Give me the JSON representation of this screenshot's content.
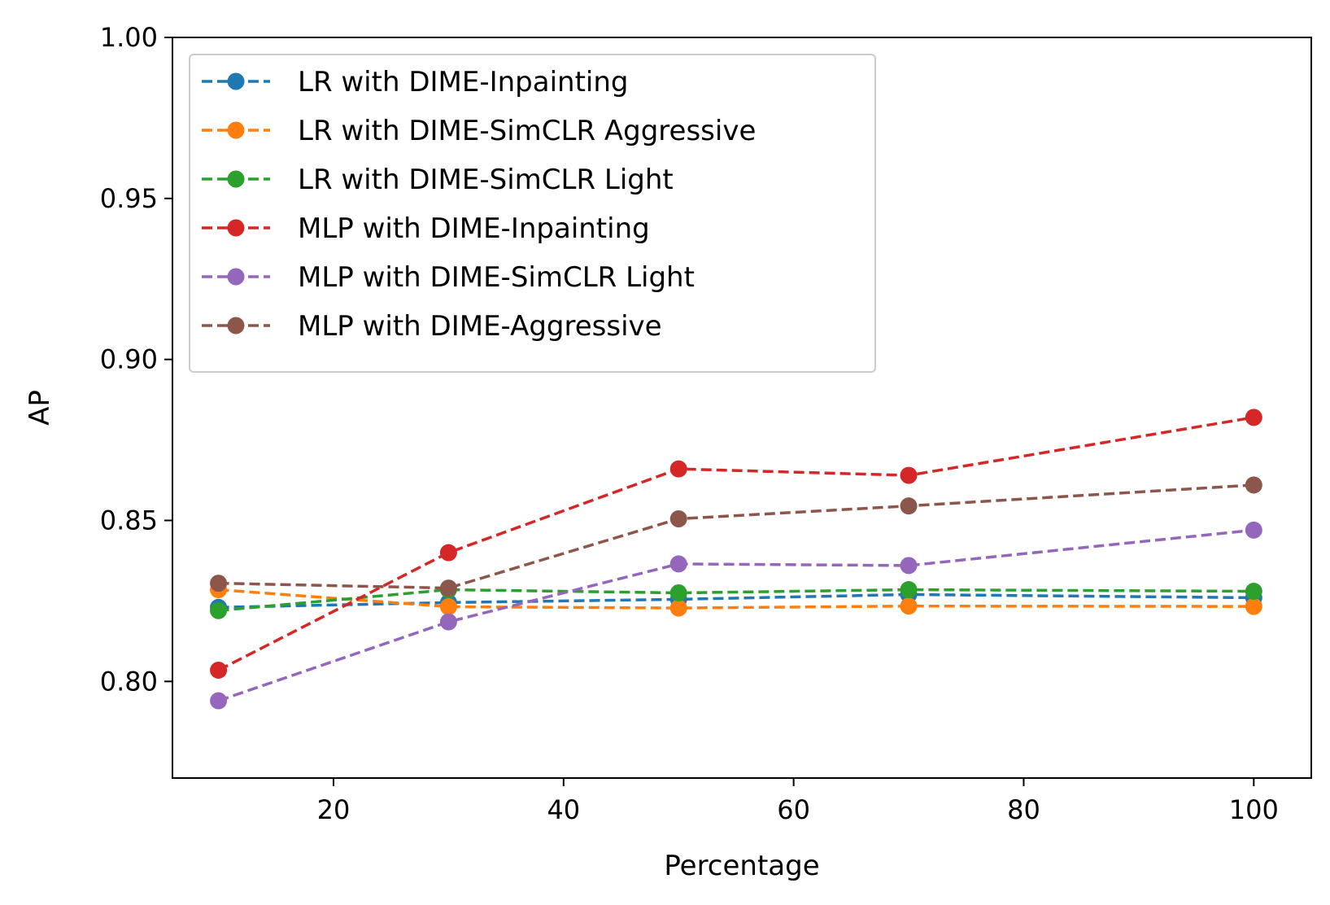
{
  "chart_data": {
    "type": "line",
    "xlabel": "Percentage",
    "ylabel": "AP",
    "xlim": [
      6,
      105
    ],
    "ylim": [
      0.77,
      1.0
    ],
    "xticks": [
      20,
      40,
      60,
      80,
      100
    ],
    "xtick_labels": [
      "20",
      "40",
      "60",
      "80",
      "100"
    ],
    "yticks": [
      0.8,
      0.85,
      0.9,
      0.95,
      1.0
    ],
    "ytick_labels": [
      "0.80",
      "0.85",
      "0.90",
      "0.95",
      "1.00"
    ],
    "grid": false,
    "legend_position": "top-left",
    "x": [
      10,
      30,
      50,
      70,
      100
    ],
    "series": [
      {
        "name": "LR with DIME-Inpainting",
        "color": "#1f77b4",
        "values": [
          0.823,
          0.8245,
          0.8255,
          0.827,
          0.826
        ]
      },
      {
        "name": "LR with DIME-SimCLR Aggressive",
        "color": "#ff7f0e",
        "values": [
          0.8285,
          0.8232,
          0.8228,
          0.8234,
          0.8233
        ]
      },
      {
        "name": "LR with DIME-SimCLR Light",
        "color": "#2ca02c",
        "values": [
          0.822,
          0.8285,
          0.8275,
          0.8285,
          0.828
        ]
      },
      {
        "name": "MLP with DIME-Inpainting",
        "color": "#d62728",
        "values": [
          0.8035,
          0.84,
          0.866,
          0.864,
          0.882
        ]
      },
      {
        "name": "MLP with DIME-SimCLR Light",
        "color": "#9467bd",
        "values": [
          0.794,
          0.8185,
          0.8365,
          0.836,
          0.847
        ]
      },
      {
        "name": "MLP with DIME-Aggressive",
        "color": "#8c564b",
        "values": [
          0.8305,
          0.829,
          0.8505,
          0.8545,
          0.861
        ]
      }
    ]
  }
}
